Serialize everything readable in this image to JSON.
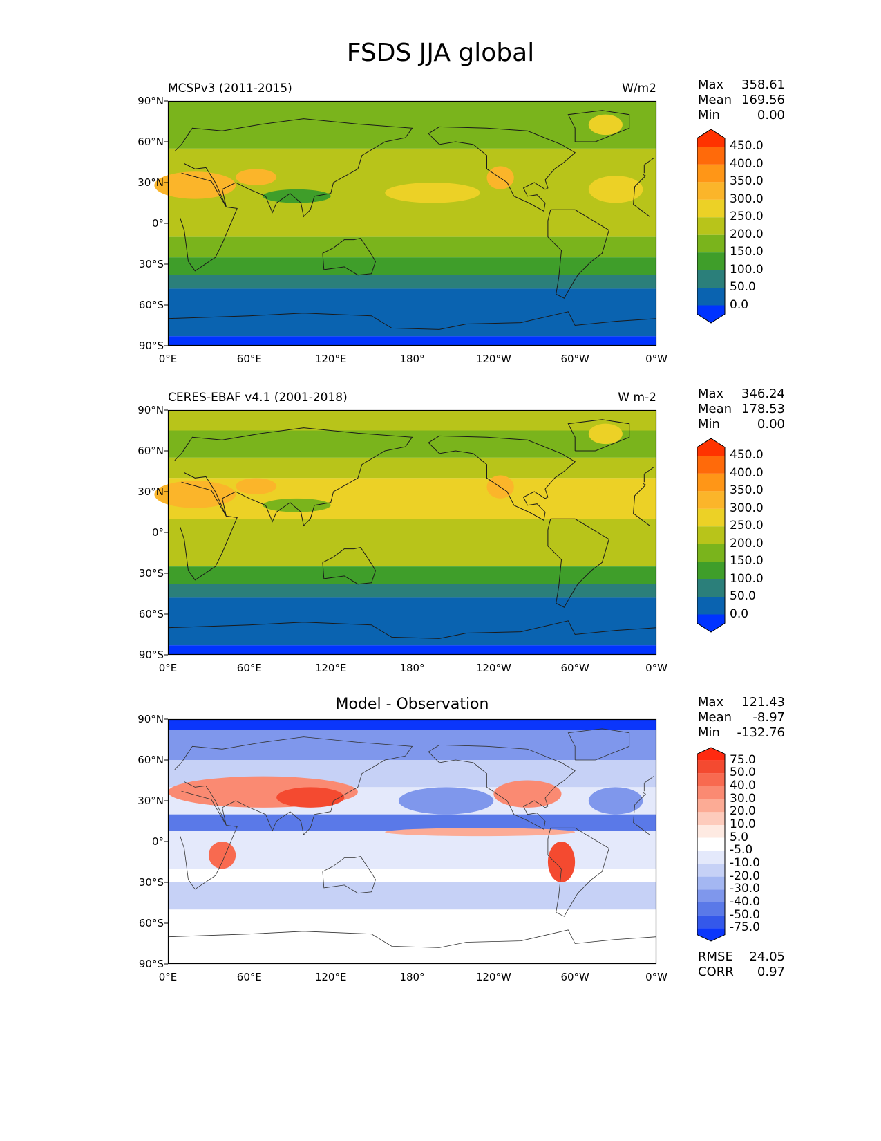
{
  "figure": {
    "title": "FSDS JJA global"
  },
  "axes": {
    "lat_labels": [
      "90°N",
      "60°N",
      "30°N",
      "0°",
      "30°S",
      "60°S",
      "90°S"
    ],
    "lon_labels": [
      "0°E",
      "60°E",
      "120°E",
      "180°",
      "120°W",
      "60°W",
      "0°W"
    ]
  },
  "panels": [
    {
      "id": "model",
      "left_title": "MCSPv3 (2011-2015)",
      "right_title": "W/m2",
      "center_title": "",
      "stats": [
        {
          "label": "Max",
          "value": "358.61"
        },
        {
          "label": "Mean",
          "value": "169.56"
        },
        {
          "label": "Min",
          "value": "0.00"
        }
      ],
      "colorbar": {
        "labels": [
          "450.0",
          "400.0",
          "350.0",
          "300.0",
          "250.0",
          "200.0",
          "150.0",
          "100.0",
          "50.0",
          "0.0"
        ],
        "colors": [
          "#ff3300",
          "#ff6a0a",
          "#ff9617",
          "#fbb52a",
          "#ecd126",
          "#b8c41a",
          "#7ab41c",
          "#3f9e2a",
          "#2b7f7a",
          "#0a63b0",
          "#0033ff"
        ]
      }
    },
    {
      "id": "obs",
      "left_title": "CERES-EBAF v4.1 (2001-2018)",
      "right_title": "W m-2",
      "center_title": "",
      "stats": [
        {
          "label": "Max",
          "value": "346.24"
        },
        {
          "label": "Mean",
          "value": "178.53"
        },
        {
          "label": "Min",
          "value": "0.00"
        }
      ],
      "colorbar": {
        "labels": [
          "450.0",
          "400.0",
          "350.0",
          "300.0",
          "250.0",
          "200.0",
          "150.0",
          "100.0",
          "50.0",
          "0.0"
        ],
        "colors": [
          "#ff3300",
          "#ff6a0a",
          "#ff9617",
          "#fbb52a",
          "#ecd126",
          "#b8c41a",
          "#7ab41c",
          "#3f9e2a",
          "#2b7f7a",
          "#0a63b0",
          "#0033ff"
        ]
      }
    },
    {
      "id": "diff",
      "left_title": "",
      "right_title": "",
      "center_title": "Model - Observation",
      "stats": [
        {
          "label": "Max",
          "value": "121.43"
        },
        {
          "label": "Mean",
          "value": "-8.97"
        },
        {
          "label": "Min",
          "value": "-132.76"
        }
      ],
      "extra_stats": [
        {
          "label": "RMSE",
          "value": "24.05"
        },
        {
          "label": "CORR",
          "value": "0.97"
        }
      ],
      "colorbar": {
        "labels": [
          "75.0",
          "50.0",
          "40.0",
          "30.0",
          "20.0",
          "10.0",
          "5.0",
          "-5.0",
          "-10.0",
          "-20.0",
          "-30.0",
          "-40.0",
          "-50.0",
          "-75.0"
        ],
        "colors": [
          "#ff2a10",
          "#f44a30",
          "#f86a50",
          "#fa8a72",
          "#fcab95",
          "#fdcbbc",
          "#feeae2",
          "#ffffff",
          "#e4e9fb",
          "#c6d1f6",
          "#a4b7f2",
          "#7f97ec",
          "#5a79e8",
          "#3458ea",
          "#0b36fb"
        ]
      }
    }
  ]
}
